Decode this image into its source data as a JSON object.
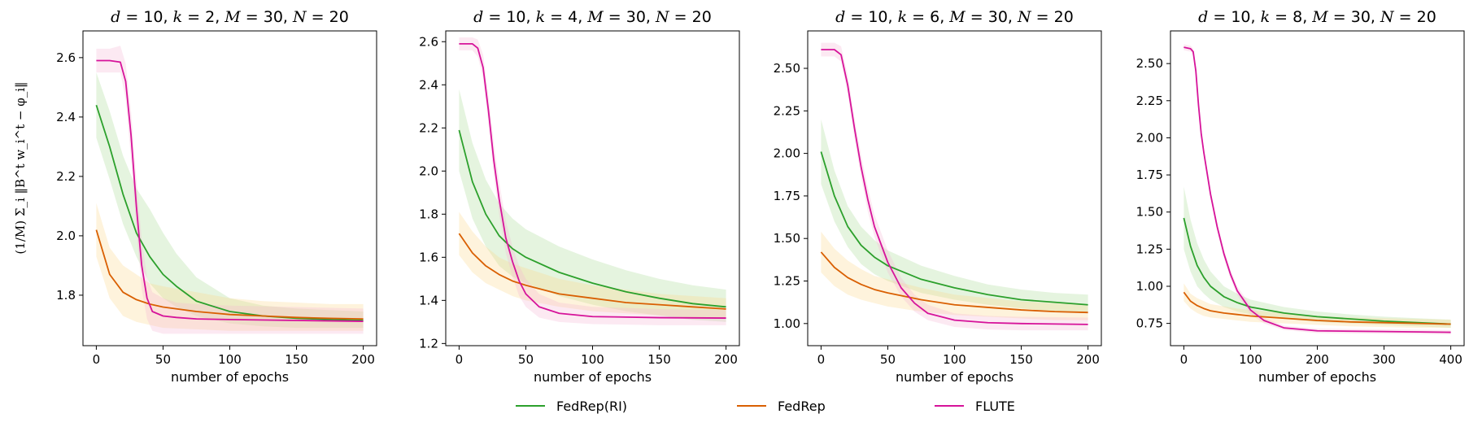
{
  "legend": {
    "entries": [
      {
        "name": "FedRep(RI)",
        "color": "#2ca02c"
      },
      {
        "name": "FedRep",
        "color": "#d95f02"
      },
      {
        "name": "FLUTE",
        "color": "#d6139a"
      }
    ]
  },
  "chart_data": [
    {
      "type": "line",
      "title": "d = 10, k = 2, M = 30, N = 20",
      "xlabel": "number of epochs",
      "ylabel": "(1/M) Σ_i ‖B^t w_i^t − φ_i‖",
      "xlim": [
        -10,
        210
      ],
      "ylim": [
        1.63,
        2.69
      ],
      "xticks": [
        0,
        50,
        100,
        150,
        200
      ],
      "yticks": [
        1.8,
        2.0,
        2.2,
        2.4,
        2.6
      ],
      "ytick_labels": [
        "1.8",
        "2.0",
        "2.2",
        "2.4",
        "2.6"
      ],
      "series": [
        {
          "name": "FedRep(RI)",
          "color": "#2ca02c",
          "band_color": "#a9dc94",
          "x": [
            0,
            10,
            20,
            30,
            40,
            50,
            60,
            75,
            100,
            125,
            150,
            175,
            200
          ],
          "y": [
            2.44,
            2.3,
            2.14,
            2.01,
            1.93,
            1.87,
            1.83,
            1.78,
            1.745,
            1.73,
            1.722,
            1.718,
            1.715
          ],
          "lower": [
            2.33,
            2.19,
            2.04,
            1.93,
            1.84,
            1.79,
            1.76,
            1.73,
            1.705,
            1.695,
            1.69,
            1.69,
            1.69
          ],
          "upper": [
            2.55,
            2.42,
            2.27,
            2.16,
            2.09,
            2.01,
            1.94,
            1.86,
            1.79,
            1.765,
            1.755,
            1.75,
            1.745
          ]
        },
        {
          "name": "FedRep",
          "color": "#d95f02",
          "band_color": "#fbd88a",
          "x": [
            0,
            10,
            20,
            30,
            40,
            50,
            75,
            100,
            125,
            150,
            175,
            200
          ],
          "y": [
            2.02,
            1.87,
            1.81,
            1.785,
            1.77,
            1.76,
            1.745,
            1.735,
            1.73,
            1.725,
            1.722,
            1.72
          ],
          "lower": [
            1.93,
            1.79,
            1.73,
            1.71,
            1.7,
            1.69,
            1.685,
            1.68,
            1.68,
            1.68,
            1.68,
            1.68
          ],
          "upper": [
            2.11,
            1.96,
            1.9,
            1.87,
            1.84,
            1.83,
            1.81,
            1.79,
            1.78,
            1.775,
            1.77,
            1.77
          ]
        },
        {
          "name": "FLUTE",
          "color": "#d6139a",
          "band_color": "#f6b7d3",
          "x": [
            0,
            10,
            18,
            22,
            26,
            30,
            34,
            38,
            42,
            50,
            60,
            75,
            100,
            150,
            200
          ],
          "y": [
            2.59,
            2.59,
            2.585,
            2.52,
            2.34,
            2.1,
            1.9,
            1.79,
            1.745,
            1.73,
            1.725,
            1.72,
            1.718,
            1.715,
            1.712
          ],
          "lower": [
            2.55,
            2.55,
            2.55,
            2.46,
            2.26,
            2.02,
            1.82,
            1.72,
            1.68,
            1.67,
            1.67,
            1.67,
            1.67,
            1.67,
            1.67
          ],
          "upper": [
            2.63,
            2.63,
            2.64,
            2.58,
            2.42,
            2.19,
            1.99,
            1.86,
            1.81,
            1.79,
            1.775,
            1.77,
            1.765,
            1.76,
            1.755
          ]
        }
      ]
    },
    {
      "type": "line",
      "title": "d = 10, k = 4, M = 30, N = 20",
      "xlabel": "number of epochs",
      "xlim": [
        -10,
        210
      ],
      "ylim": [
        1.19,
        2.65
      ],
      "xticks": [
        0,
        50,
        100,
        150,
        200
      ],
      "yticks": [
        1.2,
        1.4,
        1.6,
        1.8,
        2.0,
        2.2,
        2.4,
        2.6
      ],
      "ytick_labels": [
        "1.2",
        "1.4",
        "1.6",
        "1.8",
        "2.0",
        "2.2",
        "2.4",
        "2.6"
      ],
      "series": [
        {
          "name": "FedRep(RI)",
          "color": "#2ca02c",
          "band_color": "#a9dc94",
          "x": [
            0,
            10,
            20,
            30,
            40,
            50,
            75,
            100,
            125,
            150,
            175,
            200
          ],
          "y": [
            2.19,
            1.95,
            1.8,
            1.7,
            1.64,
            1.6,
            1.53,
            1.48,
            1.44,
            1.41,
            1.385,
            1.37
          ],
          "lower": [
            2.0,
            1.78,
            1.65,
            1.56,
            1.51,
            1.48,
            1.42,
            1.38,
            1.35,
            1.33,
            1.31,
            1.3
          ],
          "upper": [
            2.38,
            2.13,
            1.96,
            1.85,
            1.78,
            1.73,
            1.65,
            1.59,
            1.54,
            1.5,
            1.47,
            1.45
          ]
        },
        {
          "name": "FedRep",
          "color": "#d95f02",
          "band_color": "#fbd88a",
          "x": [
            0,
            10,
            20,
            30,
            40,
            50,
            75,
            100,
            125,
            150,
            175,
            200
          ],
          "y": [
            1.71,
            1.62,
            1.56,
            1.52,
            1.49,
            1.47,
            1.43,
            1.41,
            1.39,
            1.38,
            1.37,
            1.36
          ],
          "lower": [
            1.61,
            1.53,
            1.48,
            1.45,
            1.42,
            1.4,
            1.37,
            1.35,
            1.34,
            1.33,
            1.32,
            1.32
          ],
          "upper": [
            1.81,
            1.72,
            1.65,
            1.6,
            1.57,
            1.55,
            1.5,
            1.47,
            1.45,
            1.43,
            1.42,
            1.41
          ]
        },
        {
          "name": "FLUTE",
          "color": "#d6139a",
          "band_color": "#f6b7d3",
          "x": [
            0,
            10,
            14,
            18,
            22,
            26,
            30,
            35,
            40,
            45,
            50,
            60,
            75,
            100,
            150,
            200
          ],
          "y": [
            2.59,
            2.59,
            2.57,
            2.48,
            2.28,
            2.05,
            1.87,
            1.69,
            1.58,
            1.49,
            1.43,
            1.37,
            1.34,
            1.325,
            1.32,
            1.318
          ],
          "lower": [
            2.56,
            2.56,
            2.53,
            2.43,
            2.22,
            1.98,
            1.8,
            1.62,
            1.51,
            1.42,
            1.37,
            1.32,
            1.3,
            1.29,
            1.285,
            1.285
          ],
          "upper": [
            2.62,
            2.62,
            2.61,
            2.54,
            2.35,
            2.13,
            1.95,
            1.77,
            1.65,
            1.56,
            1.5,
            1.43,
            1.39,
            1.37,
            1.36,
            1.355
          ]
        }
      ]
    },
    {
      "type": "line",
      "title": "d = 10, k = 6, M = 30, N = 20",
      "xlabel": "number of epochs",
      "xlim": [
        -10,
        210
      ],
      "ylim": [
        0.87,
        2.72
      ],
      "xticks": [
        0,
        50,
        100,
        150,
        200
      ],
      "yticks": [
        1.0,
        1.25,
        1.5,
        1.75,
        2.0,
        2.25,
        2.5
      ],
      "ytick_labels": [
        "1.00",
        "1.25",
        "1.50",
        "1.75",
        "2.00",
        "2.25",
        "2.50"
      ],
      "series": [
        {
          "name": "FedRep(RI)",
          "color": "#2ca02c",
          "band_color": "#a9dc94",
          "x": [
            0,
            10,
            20,
            30,
            40,
            50,
            75,
            100,
            125,
            150,
            175,
            200
          ],
          "y": [
            2.01,
            1.75,
            1.57,
            1.46,
            1.39,
            1.34,
            1.26,
            1.21,
            1.17,
            1.14,
            1.125,
            1.11
          ],
          "lower": [
            1.82,
            1.6,
            1.45,
            1.35,
            1.29,
            1.25,
            1.18,
            1.14,
            1.11,
            1.09,
            1.07,
            1.06
          ],
          "upper": [
            2.2,
            1.9,
            1.69,
            1.57,
            1.49,
            1.43,
            1.34,
            1.28,
            1.23,
            1.2,
            1.18,
            1.17
          ]
        },
        {
          "name": "FedRep",
          "color": "#d95f02",
          "band_color": "#fbd88a",
          "x": [
            0,
            10,
            20,
            30,
            40,
            50,
            75,
            100,
            125,
            150,
            175,
            200
          ],
          "y": [
            1.42,
            1.33,
            1.27,
            1.23,
            1.2,
            1.18,
            1.14,
            1.11,
            1.095,
            1.08,
            1.07,
            1.065
          ],
          "lower": [
            1.3,
            1.22,
            1.17,
            1.14,
            1.12,
            1.1,
            1.07,
            1.05,
            1.04,
            1.03,
            1.02,
            1.02
          ],
          "upper": [
            1.54,
            1.44,
            1.37,
            1.32,
            1.28,
            1.26,
            1.21,
            1.17,
            1.15,
            1.13,
            1.12,
            1.11
          ]
        },
        {
          "name": "FLUTE",
          "color": "#d6139a",
          "band_color": "#f6b7d3",
          "x": [
            0,
            10,
            15,
            20,
            25,
            30,
            35,
            40,
            50,
            60,
            70,
            80,
            100,
            125,
            150,
            200
          ],
          "y": [
            2.61,
            2.61,
            2.58,
            2.4,
            2.15,
            1.92,
            1.73,
            1.57,
            1.36,
            1.21,
            1.12,
            1.06,
            1.02,
            1.005,
            1.0,
            0.995
          ],
          "lower": [
            2.57,
            2.57,
            2.54,
            2.35,
            2.09,
            1.86,
            1.66,
            1.51,
            1.3,
            1.16,
            1.07,
            1.02,
            0.98,
            0.965,
            0.96,
            0.96
          ],
          "upper": [
            2.65,
            2.65,
            2.63,
            2.46,
            2.21,
            1.99,
            1.8,
            1.64,
            1.43,
            1.27,
            1.17,
            1.11,
            1.06,
            1.045,
            1.04,
            1.035
          ]
        }
      ]
    },
    {
      "type": "line",
      "title": "d = 10, k = 8, M = 30, N = 20",
      "xlabel": "number of epochs",
      "xlim": [
        -20,
        420
      ],
      "ylim": [
        0.6,
        2.72
      ],
      "xticks": [
        0,
        100,
        200,
        300,
        400
      ],
      "yticks": [
        0.75,
        1.0,
        1.25,
        1.5,
        1.75,
        2.0,
        2.25,
        2.5
      ],
      "ytick_labels": [
        "0.75",
        "1.00",
        "1.25",
        "1.50",
        "1.75",
        "2.00",
        "2.25",
        "2.50"
      ],
      "series": [
        {
          "name": "FedRep(RI)",
          "color": "#2ca02c",
          "band_color": "#a9dc94",
          "x": [
            0,
            10,
            20,
            30,
            40,
            60,
            80,
            100,
            150,
            200,
            250,
            300,
            350,
            400
          ],
          "y": [
            1.46,
            1.27,
            1.14,
            1.06,
            1.0,
            0.93,
            0.89,
            0.86,
            0.82,
            0.795,
            0.78,
            0.765,
            0.755,
            0.745
          ],
          "lower": [
            1.25,
            1.1,
            1.0,
            0.95,
            0.91,
            0.86,
            0.83,
            0.81,
            0.78,
            0.76,
            0.75,
            0.74,
            0.73,
            0.72
          ],
          "upper": [
            1.67,
            1.45,
            1.29,
            1.18,
            1.1,
            1.0,
            0.95,
            0.91,
            0.86,
            0.83,
            0.81,
            0.795,
            0.785,
            0.775
          ]
        },
        {
          "name": "FedRep",
          "color": "#d95f02",
          "band_color": "#fbd88a",
          "x": [
            0,
            10,
            20,
            30,
            40,
            60,
            80,
            100,
            150,
            200,
            250,
            300,
            350,
            400
          ],
          "y": [
            0.96,
            0.9,
            0.87,
            0.85,
            0.835,
            0.82,
            0.81,
            0.8,
            0.785,
            0.77,
            0.76,
            0.755,
            0.75,
            0.745
          ],
          "lower": [
            0.9,
            0.85,
            0.82,
            0.8,
            0.79,
            0.78,
            0.77,
            0.76,
            0.75,
            0.74,
            0.73,
            0.725,
            0.72,
            0.72
          ],
          "upper": [
            1.02,
            0.95,
            0.92,
            0.9,
            0.88,
            0.865,
            0.85,
            0.84,
            0.82,
            0.8,
            0.79,
            0.785,
            0.78,
            0.775
          ]
        },
        {
          "name": "FLUTE",
          "color": "#d6139a",
          "band_color": "#f6b7d3",
          "x": [
            0,
            10,
            14,
            18,
            22,
            26,
            30,
            40,
            50,
            60,
            70,
            80,
            100,
            120,
            150,
            200,
            300,
            400
          ],
          "y": [
            2.61,
            2.6,
            2.58,
            2.45,
            2.22,
            2.03,
            1.9,
            1.62,
            1.4,
            1.22,
            1.08,
            0.97,
            0.84,
            0.77,
            0.72,
            0.7,
            0.695,
            0.69
          ],
          "lower": [
            2.59,
            2.58,
            2.56,
            2.42,
            2.19,
            2.0,
            1.87,
            1.59,
            1.37,
            1.19,
            1.05,
            0.94,
            0.81,
            0.75,
            0.705,
            0.685,
            0.68,
            0.675
          ],
          "upper": [
            2.63,
            2.62,
            2.6,
            2.48,
            2.25,
            2.06,
            1.93,
            1.65,
            1.43,
            1.25,
            1.11,
            1.0,
            0.87,
            0.79,
            0.735,
            0.715,
            0.71,
            0.705
          ]
        }
      ]
    }
  ]
}
